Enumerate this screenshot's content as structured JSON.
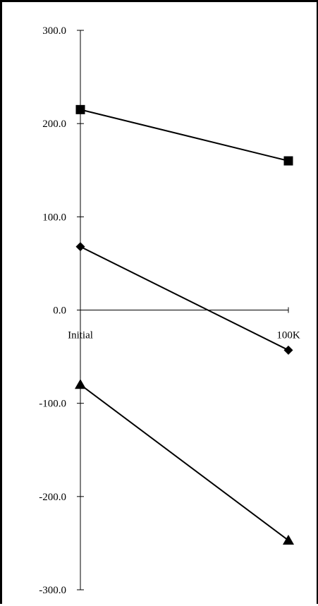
{
  "chart_data": {
    "type": "line",
    "title": "",
    "xlabel": "",
    "ylabel": "",
    "categories": [
      "Initial",
      "100K"
    ],
    "ylim": [
      -300,
      300
    ],
    "y_ticks": [
      300,
      200,
      100,
      0,
      -100,
      -200,
      -300
    ],
    "y_tick_labels": [
      "300.0",
      "200.0",
      "100.0",
      "0.0",
      "-100.0",
      "-200.0",
      "-300.0"
    ],
    "grid": false,
    "legend": "none",
    "series": [
      {
        "marker": "square",
        "color": "#000000",
        "values": [
          215,
          160
        ]
      },
      {
        "marker": "diamond",
        "color": "#000000",
        "values": [
          68,
          -43
        ]
      },
      {
        "marker": "triangle",
        "color": "#000000",
        "values": [
          -80,
          -247
        ]
      }
    ]
  }
}
